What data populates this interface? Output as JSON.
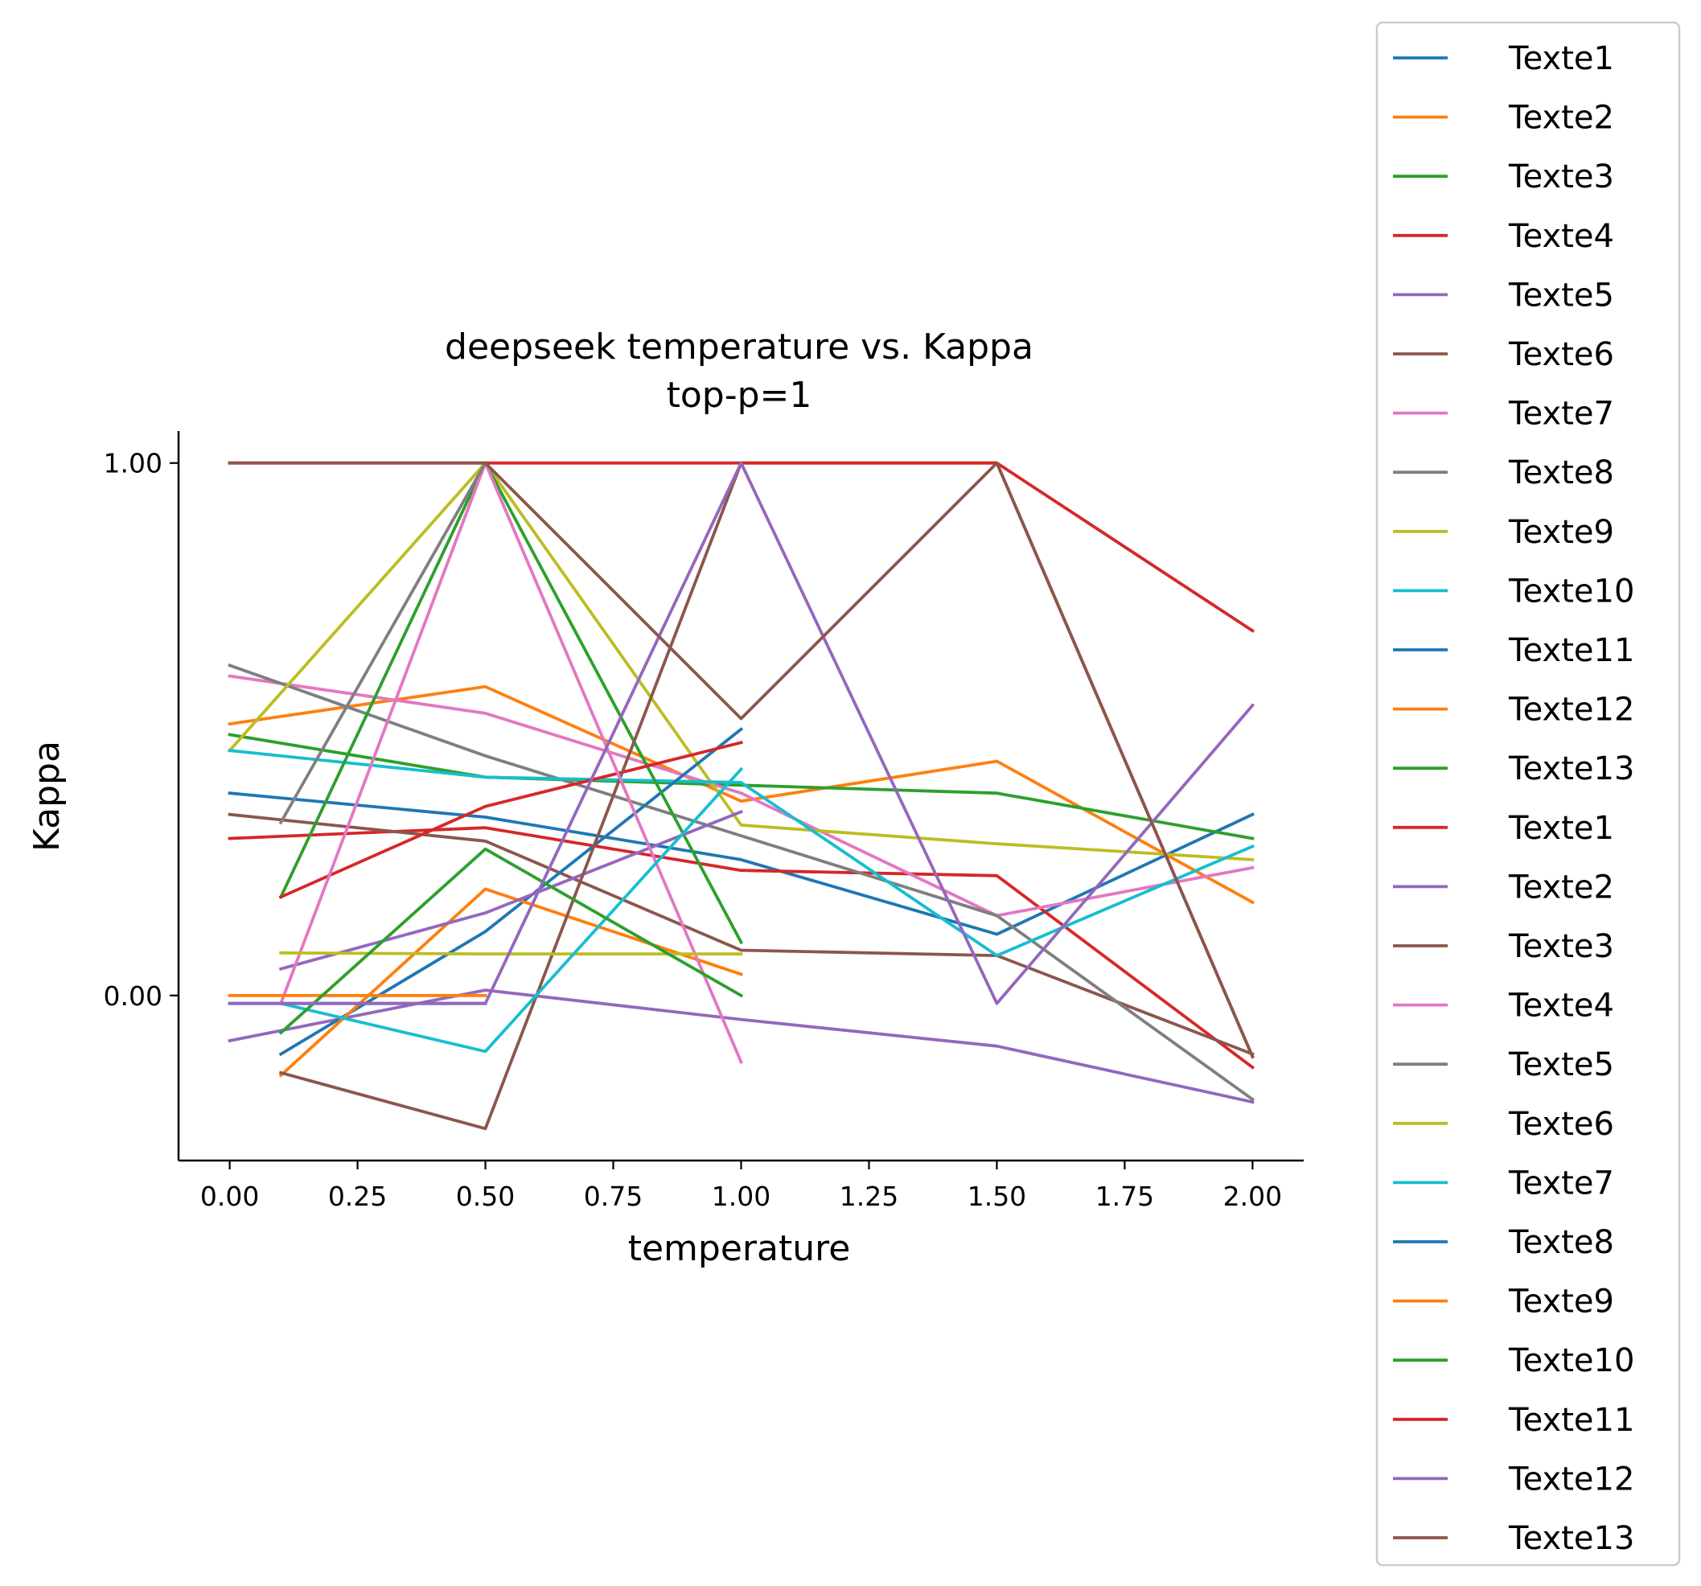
{
  "chart_data": {
    "type": "line",
    "title": "deepseek temperature vs. Kappa",
    "subtitle": "top-p=1",
    "xlabel": "temperature",
    "ylabel": "Kappa",
    "xlim": [
      -0.1,
      2.1
    ],
    "ylim": [
      -0.31,
      1.06
    ],
    "xticks": [
      0.0,
      0.25,
      0.5,
      0.75,
      1.0,
      1.25,
      1.5,
      1.75,
      2.0
    ],
    "xtick_labels": [
      "0.00",
      "0.25",
      "0.50",
      "0.75",
      "1.00",
      "1.25",
      "1.50",
      "1.75",
      "2.00"
    ],
    "yticks": [
      0.0,
      1.0
    ],
    "ytick_labels": [
      "0.00",
      "1.00"
    ],
    "grid": false,
    "legend_position": "outside-right",
    "series": [
      {
        "name": "Texte1",
        "color": "#1f77b4",
        "points": [
          [
            0.0,
            0.38
          ],
          [
            0.5,
            0.335
          ],
          [
            1.0,
            0.255
          ],
          [
            1.5,
            0.115
          ],
          [
            2.0,
            0.34
          ]
        ]
      },
      {
        "name": "Texte2",
        "color": "#ff7f0e",
        "points": [
          [
            0.0,
            0.51
          ],
          [
            0.5,
            0.58
          ],
          [
            1.0,
            0.365
          ],
          [
            1.5,
            0.44
          ],
          [
            2.0,
            0.175
          ]
        ]
      },
      {
        "name": "Texte3",
        "color": "#2ca02c",
        "points": [
          [
            0.0,
            0.49
          ],
          [
            0.5,
            0.41
          ],
          [
            1.0,
            0.395
          ],
          [
            1.5,
            0.38
          ],
          [
            2.0,
            0.295
          ]
        ]
      },
      {
        "name": "Texte4",
        "color": "#d62728",
        "points": [
          [
            0.0,
            0.295
          ],
          [
            0.5,
            0.315
          ],
          [
            1.0,
            0.235
          ],
          [
            1.5,
            0.225
          ],
          [
            2.0,
            -0.135
          ]
        ]
      },
      {
        "name": "Texte5",
        "color": "#9467bd",
        "points": [
          [
            0.0,
            -0.085
          ],
          [
            0.5,
            0.01
          ],
          [
            1.0,
            -0.045
          ],
          [
            1.5,
            -0.095
          ],
          [
            2.0,
            -0.2
          ]
        ]
      },
      {
        "name": "Texte6",
        "color": "#8c564b",
        "points": [
          [
            0.0,
            0.34
          ],
          [
            0.5,
            0.29
          ],
          [
            1.0,
            0.085
          ],
          [
            1.5,
            0.075
          ],
          [
            2.0,
            -0.11
          ]
        ]
      },
      {
        "name": "Texte7",
        "color": "#e377c2",
        "points": [
          [
            0.0,
            0.6
          ],
          [
            0.5,
            0.53
          ],
          [
            1.0,
            0.38
          ],
          [
            1.5,
            0.15
          ],
          [
            2.0,
            0.24
          ]
        ]
      },
      {
        "name": "Texte8",
        "color": "#7f7f7f",
        "points": [
          [
            0.0,
            0.62
          ],
          [
            0.5,
            0.45
          ],
          [
            1.0,
            0.3
          ],
          [
            1.5,
            0.15
          ],
          [
            2.0,
            -0.195
          ]
        ]
      },
      {
        "name": "Texte9",
        "color": "#bcbd22",
        "points": [
          [
            0.0,
            0.46
          ],
          [
            0.5,
            1.0
          ],
          [
            1.0,
            0.32
          ],
          [
            1.5,
            0.285
          ],
          [
            2.0,
            0.255
          ]
        ]
      },
      {
        "name": "Texte10",
        "color": "#17becf",
        "points": [
          [
            0.0,
            0.46
          ],
          [
            0.5,
            0.41
          ],
          [
            1.0,
            0.4
          ],
          [
            1.5,
            0.075
          ],
          [
            2.0,
            0.28
          ]
        ]
      },
      {
        "name": "Texte11",
        "color": "#1f77b4",
        "points": [
          [
            0.1,
            -0.11
          ],
          [
            0.5,
            0.12
          ],
          [
            1.0,
            0.5
          ]
        ]
      },
      {
        "name": "Texte12",
        "color": "#ff7f0e",
        "points": [
          [
            0.1,
            -0.15
          ],
          [
            0.5,
            0.2
          ],
          [
            1.0,
            0.04
          ]
        ]
      },
      {
        "name": "Texte13",
        "color": "#2ca02c",
        "points": [
          [
            0.1,
            0.185
          ],
          [
            0.5,
            1.0
          ],
          [
            1.0,
            0.1
          ]
        ]
      },
      {
        "name": "Texte1",
        "color": "#d62728",
        "points": [
          [
            0.1,
            0.185
          ],
          [
            0.5,
            0.355
          ],
          [
            1.0,
            0.475
          ]
        ]
      },
      {
        "name": "Texte2",
        "color": "#9467bd",
        "points": [
          [
            0.1,
            0.05
          ],
          [
            0.5,
            0.155
          ],
          [
            1.0,
            0.345
          ]
        ]
      },
      {
        "name": "Texte3",
        "color": "#8c564b",
        "points": [
          [
            0.1,
            -0.145
          ],
          [
            0.5,
            -0.25
          ],
          [
            1.0,
            1.0
          ],
          [
            1.5,
            1.0
          ],
          [
            2.0,
            -0.115
          ]
        ]
      },
      {
        "name": "Texte4",
        "color": "#e377c2",
        "points": [
          [
            0.1,
            -0.015
          ],
          [
            0.5,
            1.0
          ],
          [
            1.0,
            -0.125
          ]
        ]
      },
      {
        "name": "Texte5",
        "color": "#7f7f7f",
        "points": [
          [
            0.1,
            0.325
          ],
          [
            0.5,
            1.0
          ]
        ]
      },
      {
        "name": "Texte6",
        "color": "#bcbd22",
        "points": [
          [
            0.1,
            0.08
          ],
          [
            0.5,
            0.078
          ],
          [
            1.0,
            0.078
          ]
        ]
      },
      {
        "name": "Texte7",
        "color": "#17becf",
        "points": [
          [
            0.1,
            -0.015
          ],
          [
            0.5,
            -0.105
          ],
          [
            1.0,
            0.425
          ]
        ]
      },
      {
        "name": "Texte8",
        "color": "#1f77b4",
        "points": [
          [
            0.0,
            -0.015
          ],
          [
            0.5,
            -0.015
          ]
        ]
      },
      {
        "name": "Texte9",
        "color": "#ff7f0e",
        "points": [
          [
            0.0,
            0.0
          ],
          [
            0.5,
            0.0
          ]
        ]
      },
      {
        "name": "Texte10",
        "color": "#2ca02c",
        "points": [
          [
            0.1,
            -0.07
          ],
          [
            0.5,
            0.275
          ],
          [
            1.0,
            0.0
          ]
        ]
      },
      {
        "name": "Texte11",
        "color": "#d62728",
        "points": [
          [
            0.0,
            1.0
          ],
          [
            0.5,
            1.0
          ],
          [
            1.0,
            1.0
          ],
          [
            1.5,
            1.0
          ],
          [
            2.0,
            0.685
          ]
        ]
      },
      {
        "name": "Texte12",
        "color": "#9467bd",
        "points": [
          [
            0.0,
            -0.015
          ],
          [
            0.5,
            -0.015
          ],
          [
            1.0,
            1.0
          ],
          [
            1.5,
            -0.015
          ],
          [
            2.0,
            0.545
          ]
        ]
      },
      {
        "name": "Texte13",
        "color": "#8c564b",
        "points": [
          [
            0.0,
            1.0
          ],
          [
            0.5,
            1.0
          ],
          [
            1.0,
            0.52
          ],
          [
            1.5,
            1.0
          ],
          [
            2.0,
            -0.115
          ]
        ]
      }
    ]
  }
}
